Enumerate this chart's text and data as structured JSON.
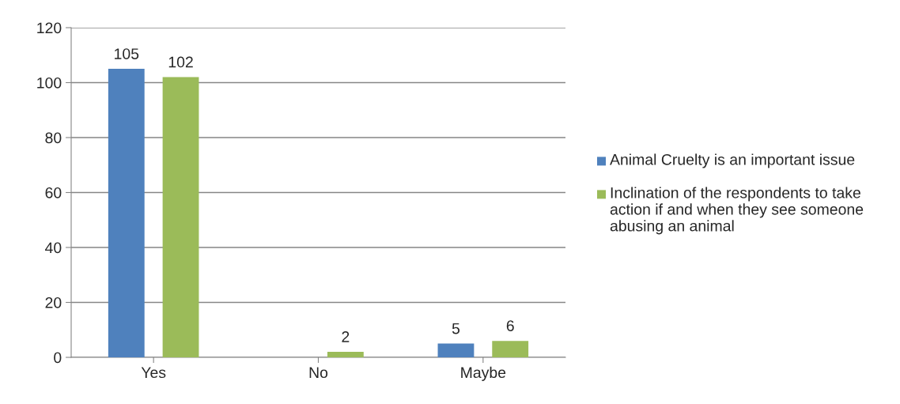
{
  "chart_data": {
    "type": "bar",
    "categories": [
      "Yes",
      "No",
      "Maybe"
    ],
    "series": [
      {
        "name": "Animal Cruelty is an important issue",
        "color": "#4f81bd",
        "values": [
          105,
          null,
          5
        ],
        "value_labels": [
          "105",
          null,
          "5"
        ]
      },
      {
        "name": "Inclination of the respondents to take action if and when they see someone abusing an animal",
        "color": "#9bbb59",
        "values": [
          102,
          2,
          6
        ],
        "value_labels": [
          "102",
          "2",
          "6"
        ]
      }
    ],
    "ylim": [
      0,
      120
    ],
    "yticks": [
      0,
      20,
      40,
      60,
      80,
      100,
      120
    ],
    "grid": "y",
    "legend": "right"
  }
}
